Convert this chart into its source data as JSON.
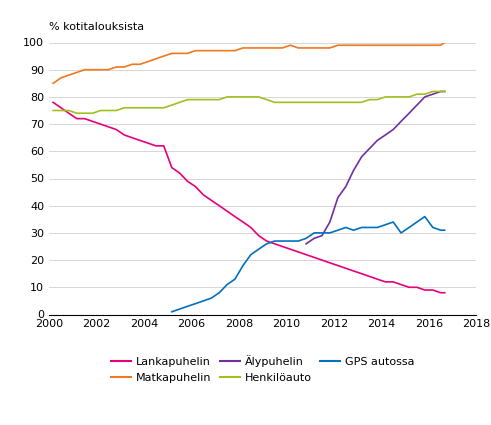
{
  "ylabel_text": "% kotitalouksista",
  "ylim": [
    0,
    100
  ],
  "xlim": [
    2000,
    2018
  ],
  "xticks": [
    2000,
    2002,
    2004,
    2006,
    2008,
    2010,
    2012,
    2014,
    2016,
    2018
  ],
  "yticks": [
    0,
    10,
    20,
    30,
    40,
    50,
    60,
    70,
    80,
    90,
    100
  ],
  "series": {
    "Lankapuhelin": {
      "color": "#e8007a",
      "x": [
        2000.17,
        2000.5,
        2000.83,
        2001.17,
        2001.5,
        2001.83,
        2002.17,
        2002.5,
        2002.83,
        2003.17,
        2003.5,
        2003.83,
        2004.17,
        2004.5,
        2004.83,
        2005.17,
        2005.5,
        2005.83,
        2006.17,
        2006.5,
        2006.83,
        2007.17,
        2007.5,
        2007.83,
        2008.17,
        2008.5,
        2008.83,
        2009.17,
        2009.5,
        2009.83,
        2010.17,
        2010.5,
        2010.83,
        2011.17,
        2011.5,
        2011.83,
        2012.17,
        2012.5,
        2012.83,
        2013.17,
        2013.5,
        2013.83,
        2014.17,
        2014.5,
        2014.83,
        2015.17,
        2015.5,
        2015.83,
        2016.17,
        2016.5,
        2016.67
      ],
      "y": [
        78,
        76,
        74,
        72,
        72,
        71,
        70,
        69,
        68,
        66,
        65,
        64,
        63,
        62,
        62,
        54,
        52,
        49,
        47,
        44,
        42,
        40,
        38,
        36,
        34,
        32,
        29,
        27,
        26,
        25,
        24,
        23,
        22,
        21,
        20,
        19,
        18,
        17,
        16,
        15,
        14,
        13,
        12,
        12,
        11,
        10,
        10,
        9,
        9,
        8,
        8
      ]
    },
    "Matkapuhelin": {
      "color": "#f07820",
      "x": [
        2000.17,
        2000.5,
        2000.83,
        2001.17,
        2001.5,
        2001.83,
        2002.17,
        2002.5,
        2002.83,
        2003.17,
        2003.5,
        2003.83,
        2004.17,
        2004.5,
        2004.83,
        2005.17,
        2005.5,
        2005.83,
        2006.17,
        2006.5,
        2006.83,
        2007.17,
        2007.5,
        2007.83,
        2008.17,
        2008.5,
        2008.83,
        2009.17,
        2009.5,
        2009.83,
        2010.17,
        2010.5,
        2010.83,
        2011.17,
        2011.5,
        2011.83,
        2012.17,
        2012.5,
        2012.83,
        2013.17,
        2013.5,
        2013.83,
        2014.17,
        2014.5,
        2014.83,
        2015.17,
        2015.5,
        2015.83,
        2016.17,
        2016.5,
        2016.67
      ],
      "y": [
        85,
        87,
        88,
        89,
        90,
        90,
        90,
        90,
        91,
        91,
        92,
        92,
        93,
        94,
        95,
        96,
        96,
        96,
        97,
        97,
        97,
        97,
        97,
        97,
        98,
        98,
        98,
        98,
        98,
        98,
        99,
        98,
        98,
        98,
        98,
        98,
        99,
        99,
        99,
        99,
        99,
        99,
        99,
        99,
        99,
        99,
        99,
        99,
        99,
        99,
        100
      ]
    },
    "Alypuhelin": {
      "color": "#7030a0",
      "x": [
        2010.83,
        2011.17,
        2011.5,
        2011.83,
        2012.17,
        2012.5,
        2012.83,
        2013.17,
        2013.5,
        2013.83,
        2014.17,
        2014.5,
        2014.83,
        2015.17,
        2015.5,
        2015.83,
        2016.17,
        2016.5,
        2016.67
      ],
      "y": [
        26,
        28,
        29,
        34,
        43,
        47,
        53,
        58,
        61,
        64,
        66,
        68,
        71,
        74,
        77,
        80,
        81,
        82,
        82
      ]
    },
    "Henkiloauto": {
      "color": "#a0c020",
      "x": [
        2000.17,
        2000.5,
        2000.83,
        2001.17,
        2001.5,
        2001.83,
        2002.17,
        2002.5,
        2002.83,
        2003.17,
        2003.5,
        2003.83,
        2004.17,
        2004.5,
        2004.83,
        2005.17,
        2005.5,
        2005.83,
        2006.17,
        2006.5,
        2006.83,
        2007.17,
        2007.5,
        2007.83,
        2008.17,
        2008.5,
        2008.83,
        2009.17,
        2009.5,
        2009.83,
        2010.17,
        2010.5,
        2010.83,
        2011.17,
        2011.5,
        2011.83,
        2012.17,
        2012.5,
        2012.83,
        2013.17,
        2013.5,
        2013.83,
        2014.17,
        2014.5,
        2014.83,
        2015.17,
        2015.5,
        2015.83,
        2016.17,
        2016.5,
        2016.67
      ],
      "y": [
        75,
        75,
        75,
        74,
        74,
        74,
        75,
        75,
        75,
        76,
        76,
        76,
        76,
        76,
        76,
        77,
        78,
        79,
        79,
        79,
        79,
        79,
        80,
        80,
        80,
        80,
        80,
        79,
        78,
        78,
        78,
        78,
        78,
        78,
        78,
        78,
        78,
        78,
        78,
        78,
        79,
        79,
        80,
        80,
        80,
        80,
        81,
        81,
        82,
        82,
        82
      ]
    },
    "GPS autossa": {
      "color": "#0070c0",
      "x": [
        2005.17,
        2005.5,
        2005.83,
        2006.17,
        2006.5,
        2006.83,
        2007.17,
        2007.5,
        2007.83,
        2008.17,
        2008.5,
        2008.83,
        2009.17,
        2009.5,
        2009.83,
        2010.17,
        2010.5,
        2010.83,
        2011.17,
        2011.5,
        2011.83,
        2012.17,
        2012.5,
        2012.83,
        2013.17,
        2013.5,
        2013.83,
        2014.17,
        2014.5,
        2014.83,
        2015.17,
        2015.5,
        2015.83,
        2016.17,
        2016.5,
        2016.67
      ],
      "y": [
        1,
        2,
        3,
        4,
        5,
        6,
        8,
        11,
        13,
        18,
        22,
        24,
        26,
        27,
        27,
        27,
        27,
        28,
        30,
        30,
        30,
        31,
        32,
        31,
        32,
        32,
        32,
        33,
        34,
        30,
        32,
        34,
        36,
        32,
        31,
        31
      ]
    }
  },
  "legend": [
    {
      "label": "Lankapuhelin",
      "color": "#e8007a"
    },
    {
      "label": "Matkapuhelin",
      "color": "#f07820"
    },
    {
      "label": "Älypuhelin",
      "color": "#7030a0"
    },
    {
      "label": "Henkilöauto",
      "color": "#a0c020"
    },
    {
      "label": "GPS autossa",
      "color": "#0070c0"
    }
  ],
  "background_color": "#ffffff",
  "grid_color": "#d0d0d0"
}
